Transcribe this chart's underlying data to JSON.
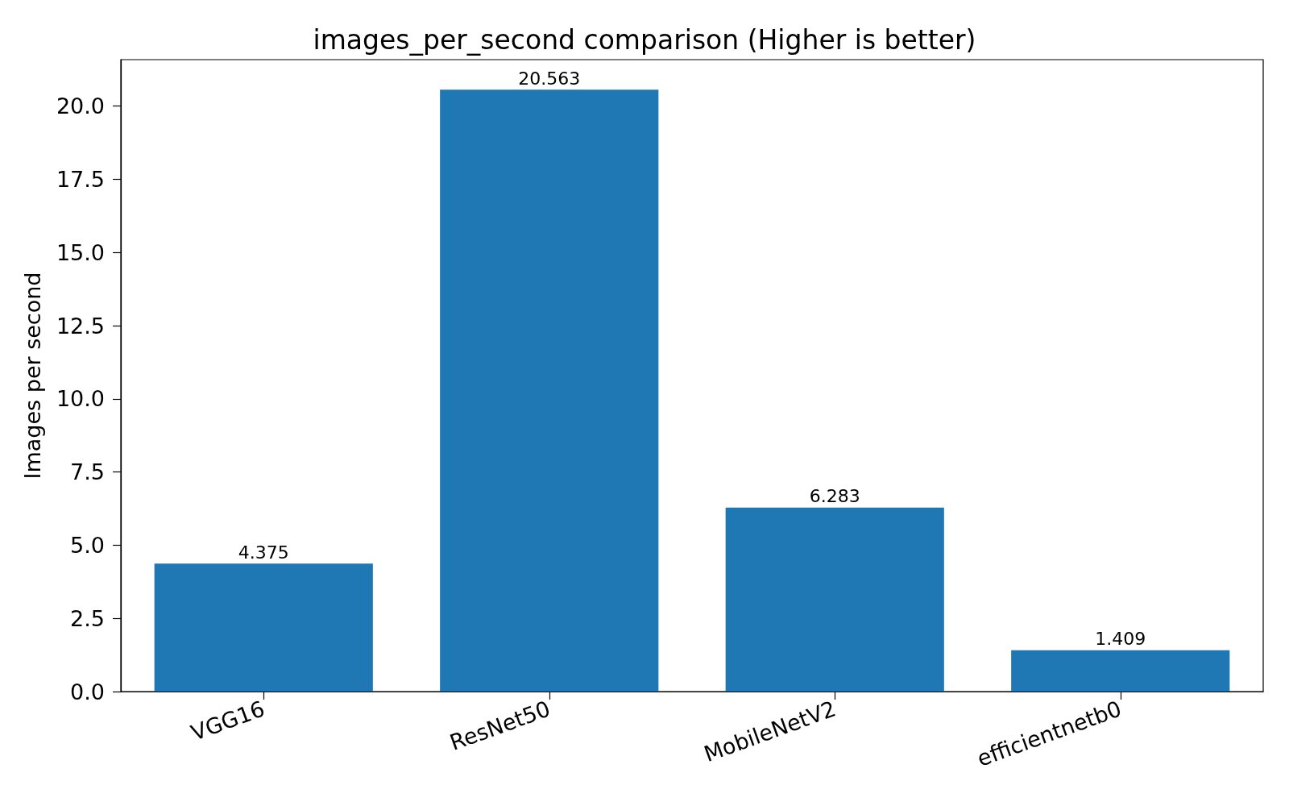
{
  "chart_data": {
    "type": "bar",
    "title": "images_per_second comparison (Higher is better)",
    "ylabel": "Images per second",
    "categories": [
      "VGG16",
      "ResNet50",
      "MobileNetV2",
      "efficientnetb0"
    ],
    "values": [
      4.375,
      20.563,
      6.283,
      1.409
    ],
    "color": "#1f77b4",
    "ylim": [
      0,
      21.59
    ],
    "yticks": [
      {
        "value": 0,
        "label": "0.0"
      },
      2.5,
      {
        "value": 5,
        "label": "5.0"
      },
      7.5,
      {
        "value": 10,
        "label": "10.0"
      },
      12.5,
      {
        "value": 15,
        "label": "15.0"
      },
      17.5,
      {
        "value": 20,
        "label": "20.0"
      }
    ],
    "data_labels": true
  }
}
